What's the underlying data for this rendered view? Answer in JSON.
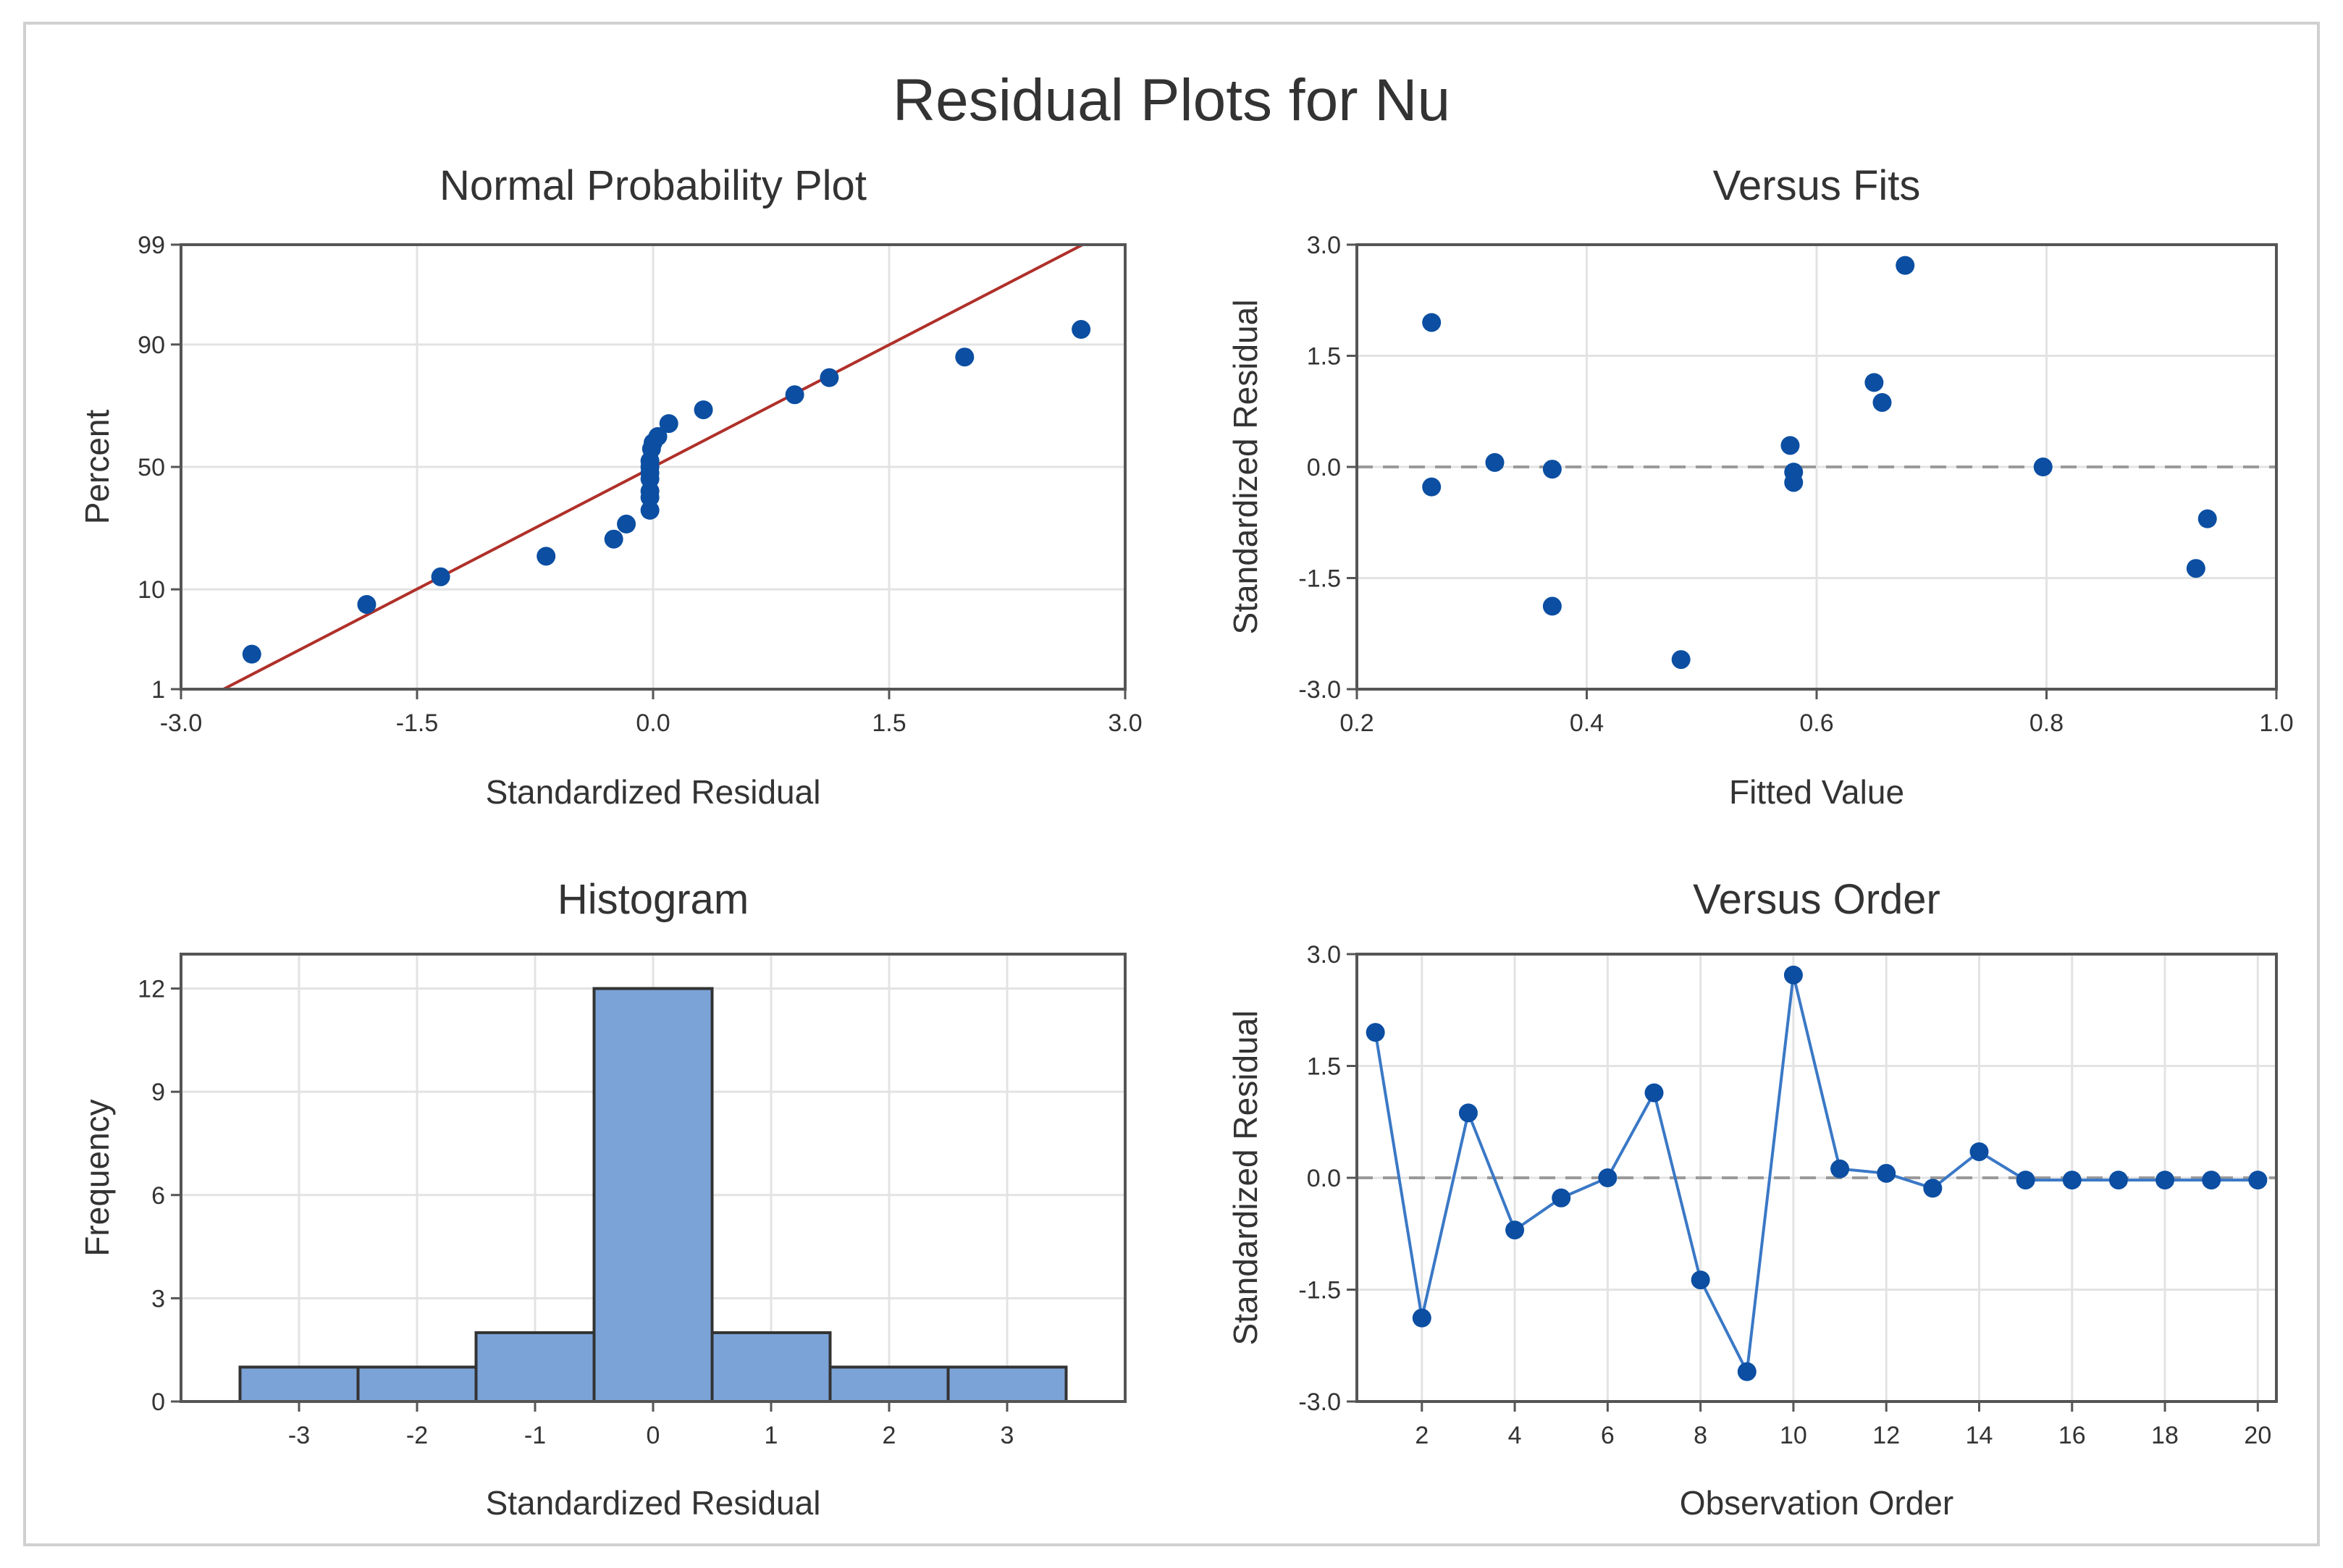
{
  "main_title": "Residual Plots for Nu",
  "colors": {
    "background": "#ffffff",
    "border": "#d0d0d0",
    "panel_border": "#555555",
    "grid": "#e3e3e3",
    "point": "#0b4ea2",
    "fit_line": "#b0302a",
    "bar_fill": "#7ba3d8",
    "bar_edge": "#333333",
    "zero_line": "#9a9a9a",
    "text": "#333333"
  },
  "chart_data": [
    {
      "id": "normal",
      "type": "scatter",
      "title": "Normal Probability Plot",
      "xlabel": "Standardized Residual",
      "ylabel": "Percent",
      "xlim": [
        -3.0,
        3.0
      ],
      "xticks": [
        -3.0,
        -1.5,
        0.0,
        1.5,
        3.0
      ],
      "xtick_labels": [
        "-3.0",
        "-1.5",
        "0.0",
        "1.5",
        "3.0"
      ],
      "ylim": [
        1,
        99
      ],
      "yticks": [
        1,
        10,
        50,
        90,
        99
      ],
      "ytick_labels": [
        "1",
        "10",
        "50",
        "90",
        "99"
      ],
      "y_scale": "normal-probability",
      "fit_line": {
        "x": [
          -2.73,
          2.73
        ],
        "y": [
          1,
          99
        ]
      },
      "x": [
        -2.55,
        -1.82,
        -1.35,
        -0.68,
        -0.25,
        -0.17,
        -0.02,
        -0.02,
        -0.02,
        -0.02,
        -0.02,
        -0.02,
        -0.02,
        -0.01,
        0.0,
        0.03,
        0.1,
        0.32,
        0.9,
        1.12,
        1.98,
        2.72
      ],
      "y": [
        2.5,
        7.5,
        12.5,
        17.5,
        22.5,
        27.5,
        32.5,
        37.5,
        40,
        45,
        47.5,
        50,
        52.5,
        57.5,
        60,
        62.5,
        67.5,
        72.5,
        77.5,
        82.5,
        87.5,
        92.5
      ]
    },
    {
      "id": "fits",
      "type": "scatter",
      "title": "Versus Fits",
      "xlabel": "Fitted Value",
      "ylabel": "Standardized Residual",
      "xlim": [
        0.2,
        1.0
      ],
      "xticks": [
        0.2,
        0.4,
        0.6,
        0.8,
        1.0
      ],
      "xtick_labels": [
        "0.2",
        "0.4",
        "0.6",
        "0.8",
        "1.0"
      ],
      "ylim": [
        -3.0,
        3.0
      ],
      "yticks": [
        -3.0,
        -1.5,
        0.0,
        1.5,
        3.0
      ],
      "ytick_labels": [
        "-3.0",
        "-1.5",
        "0.0",
        "1.5",
        "3.0"
      ],
      "reference_y": 0.0,
      "x": [
        0.265,
        0.265,
        0.32,
        0.37,
        0.37,
        0.482,
        0.577,
        0.58,
        0.58,
        0.65,
        0.657,
        0.677,
        0.797,
        0.93,
        0.94
      ],
      "y": [
        1.95,
        -0.27,
        0.06,
        -0.03,
        -1.88,
        -2.6,
        0.29,
        -0.07,
        -0.21,
        1.14,
        0.87,
        2.72,
        0.0,
        -1.37,
        -0.7
      ]
    },
    {
      "id": "histogram",
      "type": "bar",
      "title": "Histogram",
      "xlabel": "Standardized Residual",
      "ylabel": "Frequency",
      "xlim": [
        -4.0,
        4.0
      ],
      "xticks": [
        -3,
        -2,
        -1,
        0,
        1,
        2,
        3
      ],
      "xtick_labels": [
        "-3",
        "-2",
        "-1",
        "0",
        "1",
        "2",
        "3"
      ],
      "ylim": [
        0,
        13
      ],
      "yticks": [
        0,
        3,
        6,
        9,
        12
      ],
      "ytick_labels": [
        "0",
        "3",
        "6",
        "9",
        "12"
      ],
      "categories": [
        "-3",
        "-2",
        "-1",
        "0",
        "1",
        "2",
        "3"
      ],
      "values": [
        1,
        1,
        2,
        12,
        2,
        1,
        1
      ]
    },
    {
      "id": "order",
      "type": "line",
      "title": "Versus Order",
      "xlabel": "Observation Order",
      "ylabel": "Standardized Residual",
      "xlim": [
        0.6,
        20.4
      ],
      "xticks": [
        2,
        4,
        6,
        8,
        10,
        12,
        14,
        16,
        18,
        20
      ],
      "xtick_labels": [
        "2",
        "4",
        "6",
        "8",
        "10",
        "12",
        "14",
        "16",
        "18",
        "20"
      ],
      "ylim": [
        -3.0,
        3.0
      ],
      "yticks": [
        -3.0,
        -1.5,
        0.0,
        1.5,
        3.0
      ],
      "ytick_labels": [
        "-3.0",
        "-1.5",
        "0.0",
        "1.5",
        "3.0"
      ],
      "reference_y": 0.0,
      "x": [
        1,
        2,
        3,
        4,
        5,
        6,
        7,
        8,
        9,
        10,
        11,
        12,
        13,
        14,
        15,
        16,
        17,
        18,
        19,
        20
      ],
      "y": [
        1.95,
        -1.88,
        0.87,
        -0.7,
        -0.27,
        0.0,
        1.14,
        -1.37,
        -2.6,
        2.72,
        0.12,
        0.06,
        -0.14,
        0.35,
        -0.03,
        -0.03,
        -0.03,
        -0.03,
        -0.03,
        -0.03
      ]
    }
  ]
}
